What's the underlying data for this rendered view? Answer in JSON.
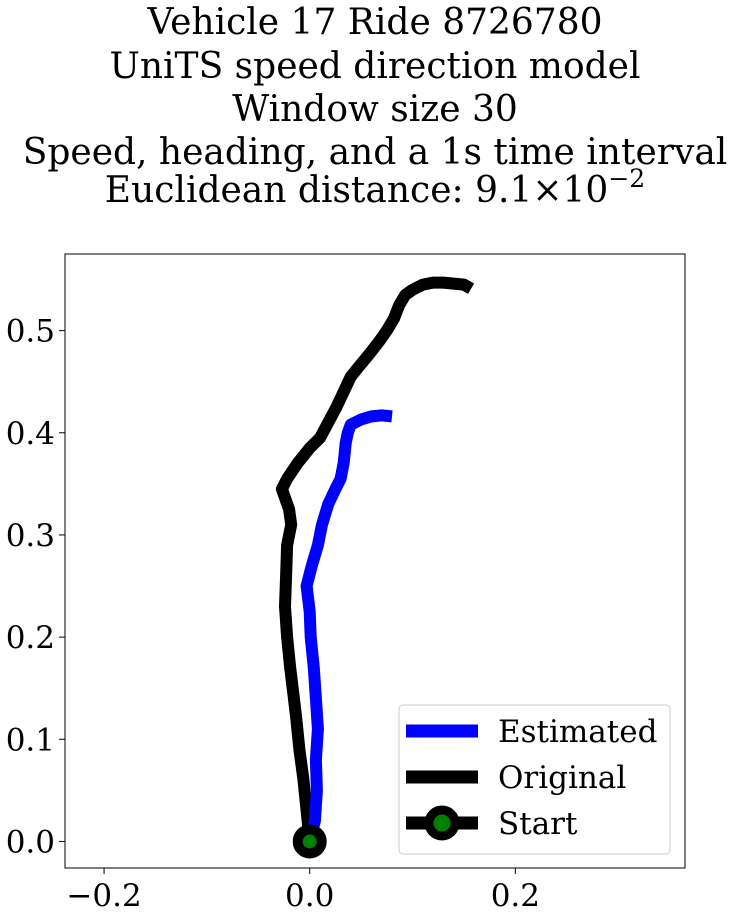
{
  "chart_data": {
    "type": "line",
    "title": [
      "Vehicle 17 Ride 8726780",
      "UniTS speed direction model",
      "Window size 30",
      "Speed, heading, and a 1s time interval"
    ],
    "distance_label": "Euclidean distance: ",
    "distance_mantissa": "9.1",
    "distance_times": "×10",
    "distance_exponent": "−2",
    "xlim": [
      -0.238,
      0.365
    ],
    "ylim": [
      -0.026,
      0.575
    ],
    "xticks": [
      -0.2,
      0.0,
      0.2
    ],
    "xtick_labels": [
      "−0.2",
      "0.0",
      "0.2"
    ],
    "yticks": [
      0.0,
      0.1,
      0.2,
      0.3,
      0.4,
      0.5
    ],
    "ytick_labels": [
      "0.0",
      "0.1",
      "0.2",
      "0.3",
      "0.4",
      "0.5"
    ],
    "legend_position": "lower-right",
    "series": [
      {
        "name": "Estimated",
        "color": "#0000ff",
        "points": [
          [
            0.0,
            0.0
          ],
          [
            0.005,
            0.02
          ],
          [
            0.007,
            0.05
          ],
          [
            0.006,
            0.08
          ],
          [
            0.008,
            0.11
          ],
          [
            0.006,
            0.14
          ],
          [
            0.004,
            0.17
          ],
          [
            0.001,
            0.2
          ],
          [
            0.0,
            0.225
          ],
          [
            -0.003,
            0.25
          ],
          [
            0.002,
            0.27
          ],
          [
            0.008,
            0.29
          ],
          [
            0.012,
            0.31
          ],
          [
            0.018,
            0.33
          ],
          [
            0.025,
            0.345
          ],
          [
            0.03,
            0.355
          ],
          [
            0.033,
            0.37
          ],
          [
            0.034,
            0.38
          ],
          [
            0.035,
            0.39
          ],
          [
            0.037,
            0.4
          ],
          [
            0.04,
            0.408
          ],
          [
            0.05,
            0.413
          ],
          [
            0.06,
            0.416
          ],
          [
            0.07,
            0.417
          ],
          [
            0.08,
            0.416
          ]
        ]
      },
      {
        "name": "Original",
        "color": "#000000",
        "points": [
          [
            0.0,
            0.0
          ],
          [
            -0.003,
            0.03
          ],
          [
            -0.006,
            0.06
          ],
          [
            -0.01,
            0.09
          ],
          [
            -0.013,
            0.12
          ],
          [
            -0.016,
            0.145
          ],
          [
            -0.019,
            0.17
          ],
          [
            -0.022,
            0.2
          ],
          [
            -0.024,
            0.23
          ],
          [
            -0.023,
            0.26
          ],
          [
            -0.022,
            0.29
          ],
          [
            -0.018,
            0.31
          ],
          [
            -0.02,
            0.325
          ],
          [
            -0.027,
            0.345
          ],
          [
            -0.022,
            0.355
          ],
          [
            -0.012,
            0.37
          ],
          [
            0.0,
            0.385
          ],
          [
            0.01,
            0.395
          ],
          [
            0.018,
            0.41
          ],
          [
            0.026,
            0.425
          ],
          [
            0.033,
            0.44
          ],
          [
            0.04,
            0.455
          ],
          [
            0.048,
            0.465
          ],
          [
            0.058,
            0.477
          ],
          [
            0.068,
            0.49
          ],
          [
            0.075,
            0.5
          ],
          [
            0.082,
            0.512
          ],
          [
            0.087,
            0.525
          ],
          [
            0.093,
            0.535
          ],
          [
            0.1,
            0.54
          ],
          [
            0.11,
            0.545
          ],
          [
            0.12,
            0.547
          ],
          [
            0.13,
            0.547
          ],
          [
            0.14,
            0.546
          ],
          [
            0.15,
            0.545
          ],
          [
            0.157,
            0.541
          ]
        ]
      },
      {
        "name": "Start",
        "marker": "circle",
        "marker_edge_color": "#000000",
        "marker_face_color": "#008000",
        "points": [
          [
            0.0,
            0.0
          ]
        ]
      }
    ]
  }
}
